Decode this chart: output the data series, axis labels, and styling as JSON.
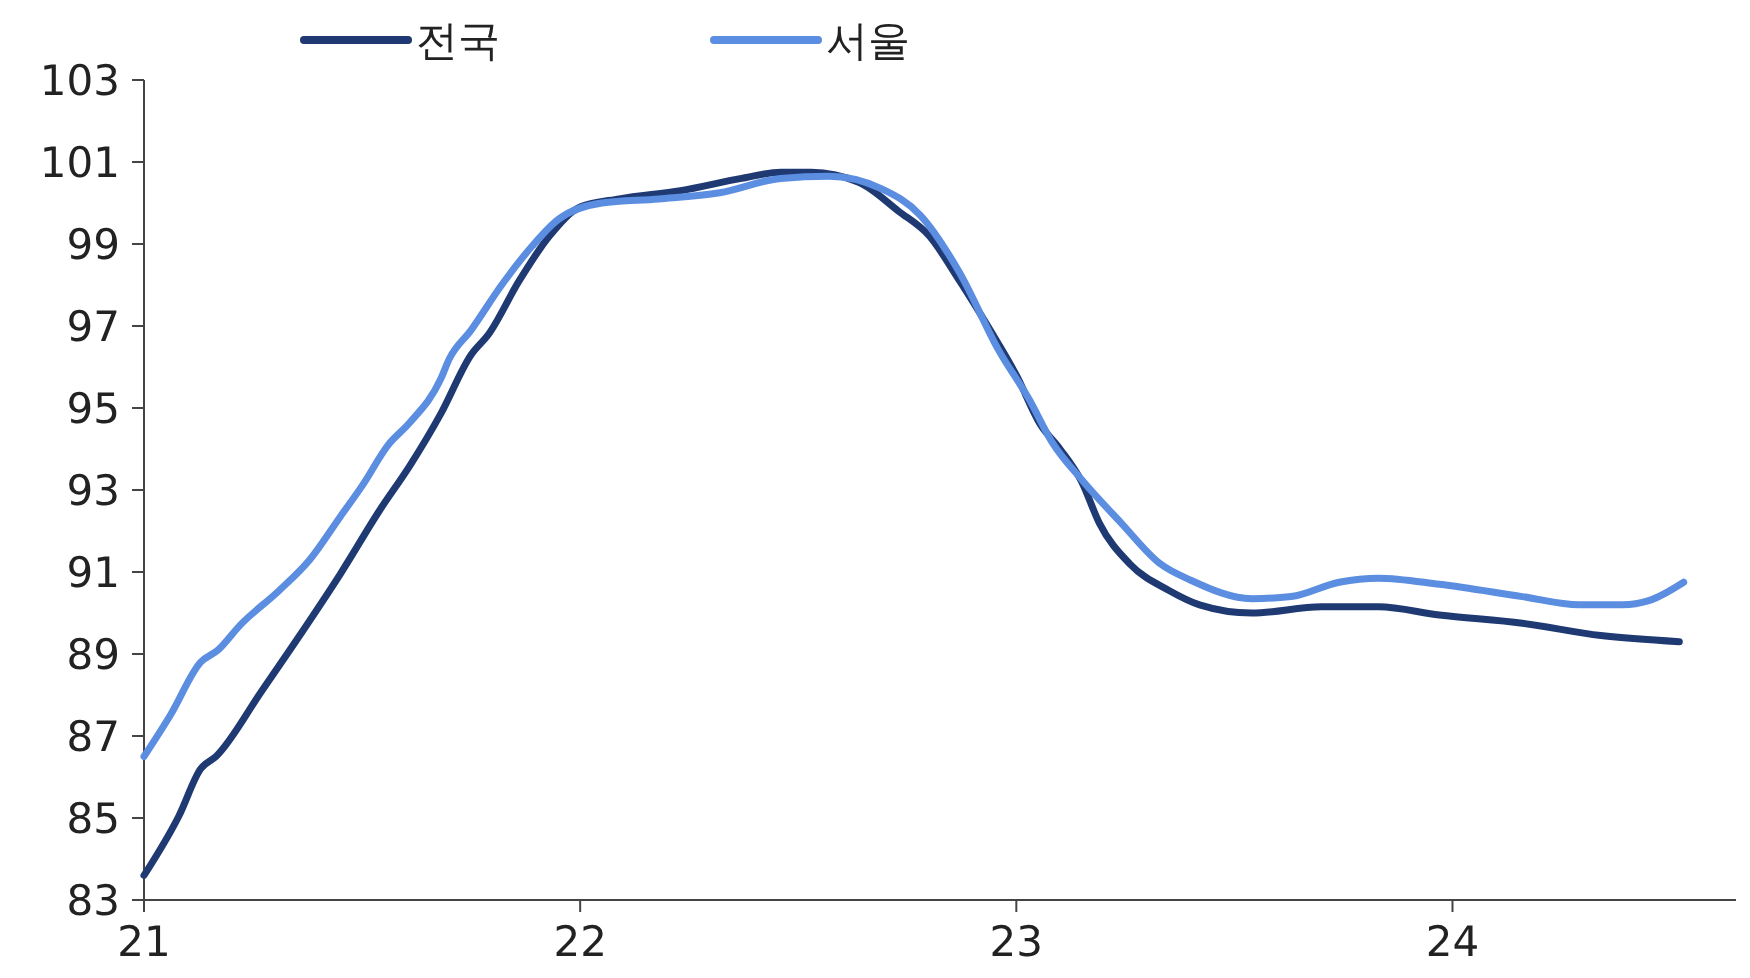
{
  "chart_data": {
    "type": "line",
    "xlim": [
      21,
      24.65
    ],
    "xticks": [
      21,
      22,
      23,
      24
    ],
    "ylim": [
      83,
      103
    ],
    "yticks": [
      83,
      85,
      87,
      89,
      91,
      93,
      95,
      97,
      99,
      101,
      103
    ],
    "grid": false,
    "legend": "top",
    "marker": "none",
    "line_style": "solid",
    "series": [
      {
        "name": "전국",
        "color": "#1f3a73",
        "x": [
          21,
          21.08,
          21.13,
          21.165,
          21.27,
          21.36,
          21.45,
          21.54,
          21.61,
          21.68,
          21.75,
          21.79,
          21.86,
          21.93,
          22,
          22.09,
          22.23,
          22.37,
          22.46,
          22.53,
          22.64,
          22.73,
          22.8,
          22.87,
          22.94,
          23,
          23.055,
          23.1,
          23.15,
          23.19,
          23.26,
          23.35,
          23.42,
          23.54,
          23.7,
          23.83,
          23.97,
          24.16,
          24.34,
          24.52
        ],
        "values": [
          83.6,
          85.05,
          86.2,
          86.5,
          88.1,
          89.5,
          90.95,
          92.5,
          93.6,
          94.85,
          96.3,
          96.8,
          98.1,
          99.2,
          99.9,
          100.1,
          100.3,
          100.6,
          100.75,
          100.75,
          100.5,
          99.8,
          99.2,
          98.1,
          96.9,
          95.8,
          94.6,
          94,
          93.2,
          92.2,
          91.2,
          90.55,
          90.2,
          90,
          90.15,
          90.15,
          89.95,
          89.75,
          89.45,
          89.3
        ]
      },
      {
        "name": "서울",
        "color": "#5b8ee0",
        "x": [
          21,
          21.06,
          21.13,
          21.17,
          21.22,
          21.31,
          21.38,
          21.45,
          21.5,
          21.56,
          21.61,
          21.68,
          21.7,
          21.75,
          21.82,
          21.89,
          21.95,
          22.05,
          22.18,
          22.32,
          22.46,
          22.57,
          22.69,
          22.78,
          22.87,
          22.96,
          23.03,
          23.08,
          23.15,
          23.24,
          23.33,
          23.4,
          23.54,
          23.63,
          23.74,
          23.83,
          23.97,
          24.16,
          24.29,
          24.39,
          24.45,
          24.53
        ],
        "values": [
          86.5,
          87.5,
          88.8,
          89.1,
          89.7,
          90.55,
          91.3,
          92.35,
          93.1,
          94.1,
          94.65,
          95.7,
          96.2,
          96.9,
          98,
          98.95,
          99.6,
          100,
          100.1,
          100.25,
          100.6,
          100.65,
          100.35,
          99.7,
          98.3,
          96.4,
          95.2,
          94.2,
          93.25,
          92.2,
          91.2,
          90.8,
          90.35,
          90.4,
          90.75,
          90.85,
          90.7,
          90.4,
          90.2,
          90.2,
          90.3,
          90.75
        ]
      }
    ]
  }
}
